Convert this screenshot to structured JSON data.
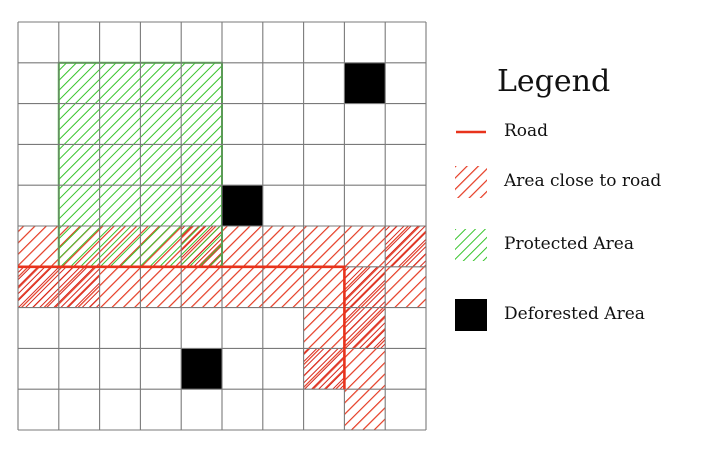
{
  "colors": {
    "road": "#e8331c",
    "road_hatch": "#e53a22",
    "protected": "#36c42a",
    "deforested": "#000000",
    "grid": "#7a7a7a",
    "background": "#ffffff"
  },
  "grid": {
    "columns": 10,
    "rows": 10,
    "deforested_cells": [
      [
        8,
        1
      ],
      [
        5,
        4
      ],
      [
        4,
        8
      ]
    ],
    "close_to_road_cells": [
      [
        0,
        5
      ],
      [
        1,
        5
      ],
      [
        2,
        5
      ],
      [
        3,
        5
      ],
      [
        4,
        5
      ],
      [
        5,
        5
      ],
      [
        6,
        5
      ],
      [
        7,
        5
      ],
      [
        8,
        5
      ],
      [
        9,
        5
      ],
      [
        0,
        6
      ],
      [
        1,
        6
      ],
      [
        2,
        6
      ],
      [
        3,
        6
      ],
      [
        4,
        6
      ],
      [
        5,
        6
      ],
      [
        6,
        6
      ],
      [
        7,
        6
      ],
      [
        8,
        6
      ],
      [
        9,
        6
      ],
      [
        7,
        7
      ],
      [
        8,
        7
      ],
      [
        7,
        8
      ],
      [
        8,
        8
      ],
      [
        8,
        9
      ]
    ],
    "dense_close_to_road_cells": [
      [
        9,
        5
      ],
      [
        0,
        6
      ],
      [
        1,
        6
      ],
      [
        8,
        6
      ],
      [
        8,
        7
      ],
      [
        7,
        8
      ],
      [
        4,
        5
      ]
    ],
    "protected_area": {
      "col_start": 1,
      "row_start": 1,
      "col_end": 5,
      "row_end": 6
    },
    "road_path": [
      [
        0,
        6
      ],
      [
        8,
        6
      ],
      [
        8,
        9
      ]
    ]
  },
  "legend": {
    "title": "Legend",
    "items": [
      {
        "key": "road",
        "label": "Road",
        "icon": "road-line-icon"
      },
      {
        "key": "close",
        "label": "Area close to road",
        "icon": "red-hatch-icon"
      },
      {
        "key": "protected",
        "label": "Protected Area",
        "icon": "green-hatch-icon"
      },
      {
        "key": "deforested",
        "label": "Deforested Area",
        "icon": "black-square-icon"
      }
    ]
  }
}
